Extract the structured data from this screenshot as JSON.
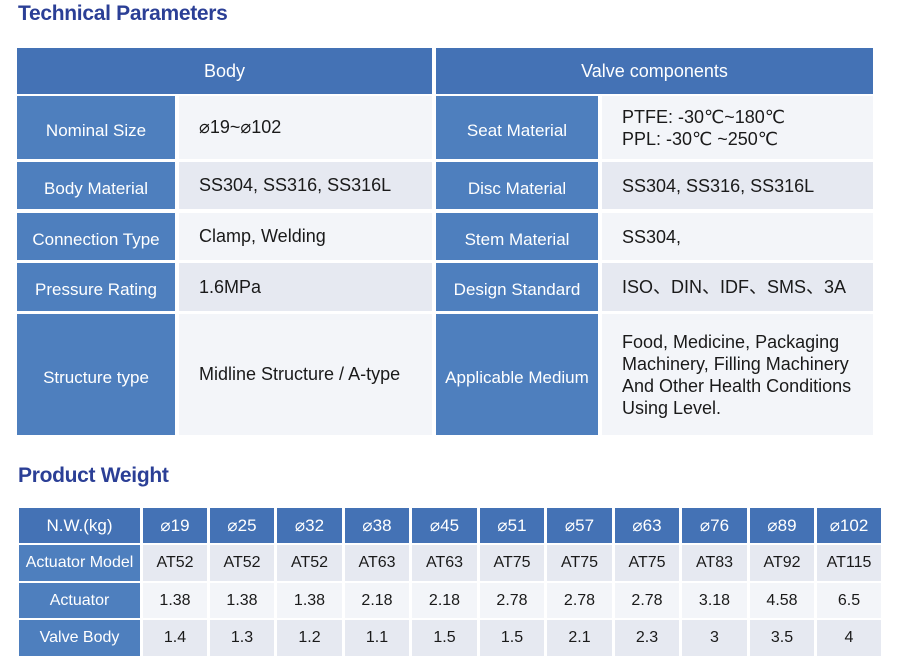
{
  "technical": {
    "title": "Technical Parameters",
    "body_header": "Body",
    "valve_header": "Valve components",
    "rows": [
      {
        "left_label": "Nominal Size",
        "left_value": "⌀19~⌀102",
        "right_label": "Seat Material",
        "right_value_lines": [
          "PTFE: -30℃~180℃",
          "PPL:  -30℃ ~250℃"
        ]
      },
      {
        "left_label": "Body Material",
        "left_value": "SS304, SS316, SS316L",
        "right_label": "Disc Material",
        "right_value_lines": [
          "SS304, SS316, SS316L"
        ]
      },
      {
        "left_label": "Connection Type",
        "left_value": "Clamp, Welding",
        "right_label": "Stem Material",
        "right_value_lines": [
          "SS304,"
        ]
      },
      {
        "left_label": "Pressure Rating",
        "left_value": "1.6MPa",
        "right_label": "Design Standard",
        "right_value_lines": [
          "ISO、DIN、IDF、SMS、3A"
        ]
      },
      {
        "left_label": "Structure type",
        "left_value": "Midline Structure / A-type",
        "right_label": "Applicable Medium",
        "right_value_lines": [
          "Food, Medicine, Packaging",
          "Machinery, Filling Machinery",
          "And Other Health Conditions",
          "Using Level."
        ]
      }
    ]
  },
  "weight": {
    "title": "Product Weight",
    "header_label": "N.W.(kg)",
    "sizes": [
      "⌀19",
      "⌀25",
      "⌀32",
      "⌀38",
      "⌀45",
      "⌀51",
      "⌀57",
      "⌀63",
      "⌀76",
      "⌀89",
      "⌀102"
    ],
    "rows": [
      {
        "label": "Actuator Model",
        "values": [
          "AT52",
          "AT52",
          "AT52",
          "AT63",
          "AT63",
          "AT75",
          "AT75",
          "AT75",
          "AT83",
          "AT92",
          "AT115"
        ]
      },
      {
        "label": "Actuator",
        "values": [
          "1.38",
          "1.38",
          "1.38",
          "2.18",
          "2.18",
          "2.78",
          "2.78",
          "2.78",
          "3.18",
          "4.58",
          "6.5"
        ]
      },
      {
        "label": "Valve Body",
        "values": [
          "1.4",
          "1.3",
          "1.2",
          "1.1",
          "1.5",
          "1.5",
          "2.1",
          "2.3",
          "3",
          "3.5",
          "4"
        ]
      }
    ]
  },
  "colors": {
    "heading": "#2b3f96",
    "header_fill": "#4472b5",
    "label_fill": "#4e7fbe",
    "row_dark": "#e6e9f1",
    "row_light": "#f3f5f9"
  }
}
